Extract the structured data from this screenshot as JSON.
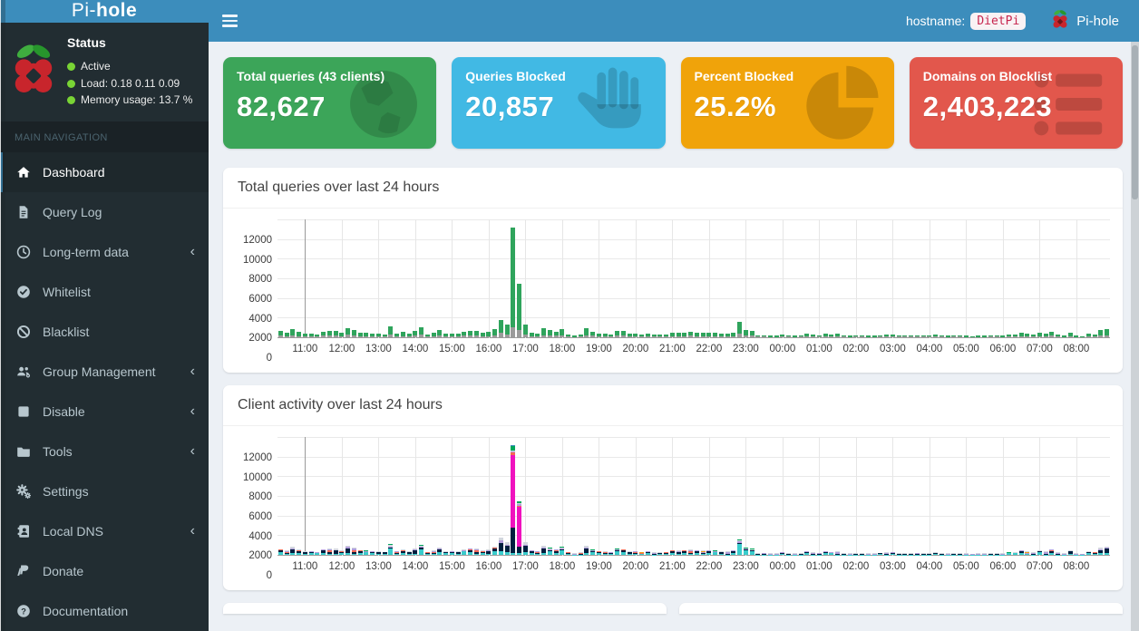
{
  "header": {
    "logo": {
      "prefix": "Pi-",
      "bold": "hole"
    },
    "hostname_label": "hostname:",
    "hostname_value": "DietPi",
    "brand_right": "Pi-hole"
  },
  "sidebar": {
    "status": {
      "title": "Status",
      "items": [
        {
          "label": "Active"
        },
        {
          "label": "Load:  0.18  0.11  0.09"
        },
        {
          "label": "Memory usage:  13.7 %"
        }
      ],
      "dot_color": "#79d435"
    },
    "section_label": "MAIN NAVIGATION",
    "items": [
      {
        "label": "Dashboard",
        "icon": "home-icon",
        "active": true,
        "chevron": false
      },
      {
        "label": "Query Log",
        "icon": "file-icon",
        "active": false,
        "chevron": false
      },
      {
        "label": "Long-term data",
        "icon": "clock-icon",
        "active": false,
        "chevron": true
      },
      {
        "label": "Whitelist",
        "icon": "check-circle-icon",
        "active": false,
        "chevron": false
      },
      {
        "label": "Blacklist",
        "icon": "ban-icon",
        "active": false,
        "chevron": false
      },
      {
        "label": "Group Management",
        "icon": "users-icon",
        "active": false,
        "chevron": true
      },
      {
        "label": "Disable",
        "icon": "stop-icon",
        "active": false,
        "chevron": true
      },
      {
        "label": "Tools",
        "icon": "folder-icon",
        "active": false,
        "chevron": true
      },
      {
        "label": "Settings",
        "icon": "gears-icon",
        "active": false,
        "chevron": false
      },
      {
        "label": "Local DNS",
        "icon": "address-book-icon",
        "active": false,
        "chevron": true
      },
      {
        "label": "Donate",
        "icon": "paypal-icon",
        "active": false,
        "chevron": false
      },
      {
        "label": "Documentation",
        "icon": "question-icon",
        "active": false,
        "chevron": false
      }
    ]
  },
  "cards": [
    {
      "label": "Total queries (43 clients)",
      "value": "82,627",
      "color": "#3ca559",
      "icon": "globe-icon"
    },
    {
      "label": "Queries Blocked",
      "value": "20,857",
      "color": "#41b9e4",
      "icon": "hand-icon"
    },
    {
      "label": "Percent Blocked",
      "value": "25.2%",
      "color": "#f0a30a",
      "icon": "pie-chart-icon"
    },
    {
      "label": "Domains on Blocklist",
      "value": "2,403,223",
      "color": "#e2574c",
      "icon": "list-icon"
    }
  ],
  "chart_data": [
    {
      "type": "bar",
      "title": "Total queries over last 24 hours",
      "x_start": "10:20",
      "x_interval_minutes": 10,
      "tick_labels": [
        "11:00",
        "12:00",
        "13:00",
        "14:00",
        "15:00",
        "16:00",
        "17:00",
        "18:00",
        "19:00",
        "20:00",
        "21:00",
        "22:00",
        "23:00",
        "00:00",
        "01:00",
        "02:00",
        "03:00",
        "04:00",
        "05:00",
        "06:00",
        "07:00",
        "08:00"
      ],
      "tick_start_index": 4,
      "tick_every": 6,
      "ylim": [
        0,
        12000
      ],
      "yticks": [
        0,
        2000,
        4000,
        6000,
        8000,
        10000,
        12000
      ],
      "colors": {
        "permitted": "#2fa45c",
        "blocked": "#9b9b9b"
      },
      "totals": [
        600,
        420,
        800,
        520,
        380,
        350,
        300,
        560,
        650,
        600,
        420,
        950,
        700,
        500,
        450,
        380,
        350,
        320,
        1060,
        380,
        520,
        340,
        620,
        1000,
        300,
        420,
        700,
        380,
        380,
        330,
        560,
        650,
        600,
        420,
        520,
        820,
        1700,
        1250,
        11100,
        5400,
        1250,
        450,
        400,
        900,
        700,
        550,
        800,
        300,
        150,
        250,
        900,
        550,
        400,
        350,
        300,
        650,
        600,
        350,
        380,
        300,
        350,
        280,
        250,
        300,
        500,
        420,
        500,
        560,
        480,
        420,
        480,
        420,
        380,
        350,
        450,
        1550,
        750,
        600,
        200,
        180,
        150,
        160,
        300,
        180,
        150,
        200,
        350,
        250,
        220,
        380,
        300,
        350,
        200,
        150,
        180,
        200,
        160,
        150,
        220,
        250,
        280,
        200,
        180,
        200,
        220,
        180,
        200,
        250,
        180,
        160,
        200,
        180,
        150,
        140,
        160,
        150,
        180,
        200,
        160,
        250,
        280,
        450,
        380,
        300,
        500,
        350,
        550,
        250,
        150,
        480,
        150,
        120,
        380,
        300,
        700,
        850
      ],
      "blocked": [
        150,
        110,
        200,
        130,
        100,
        90,
        80,
        140,
        160,
        150,
        110,
        240,
        180,
        130,
        110,
        100,
        90,
        80,
        270,
        100,
        130,
        90,
        160,
        250,
        80,
        110,
        180,
        100,
        100,
        80,
        140,
        160,
        150,
        110,
        130,
        210,
        430,
        310,
        1000,
        700,
        310,
        110,
        100,
        230,
        180,
        140,
        200,
        80,
        40,
        60,
        230,
        140,
        100,
        90,
        80,
        160,
        150,
        90,
        100,
        80,
        90,
        70,
        60,
        80,
        130,
        110,
        130,
        140,
        120,
        110,
        120,
        110,
        100,
        90,
        110,
        390,
        190,
        150,
        50,
        50,
        40,
        40,
        80,
        50,
        40,
        50,
        90,
        60,
        60,
        100,
        80,
        90,
        50,
        40,
        50,
        50,
        40,
        40,
        60,
        60,
        70,
        50,
        50,
        50,
        60,
        50,
        50,
        60,
        50,
        40,
        50,
        50,
        40,
        40,
        40,
        40,
        50,
        50,
        40,
        60,
        70,
        110,
        100,
        80,
        130,
        90,
        140,
        60,
        40,
        120,
        40,
        30,
        100,
        80,
        180,
        210
      ]
    },
    {
      "type": "bar",
      "title": "Client activity over last 24 hours",
      "x_start": "10:20",
      "x_interval_minutes": 10,
      "tick_labels": [
        "11:00",
        "12:00",
        "13:00",
        "14:00",
        "15:00",
        "16:00",
        "17:00",
        "18:00",
        "19:00",
        "20:00",
        "21:00",
        "22:00",
        "23:00",
        "00:00",
        "01:00",
        "02:00",
        "03:00",
        "04:00",
        "05:00",
        "06:00",
        "07:00",
        "08:00"
      ],
      "tick_start_index": 4,
      "tick_every": 6,
      "ylim": [
        0,
        12000
      ],
      "yticks": [
        0,
        2000,
        4000,
        6000,
        8000,
        10000,
        12000
      ],
      "totals_from": 0,
      "palette": [
        "#39CCCC",
        "#001F3F",
        "#F012BE",
        "#F56954",
        "#B39DDB",
        "#F39C12",
        "#D2D6DE",
        "#00A65A",
        "#3C8DBC"
      ],
      "mixes": [
        [
          0.4,
          0.35,
          0,
          0.1,
          0.08,
          0,
          0.07,
          0,
          0
        ],
        [
          0.22,
          0.5,
          0,
          0,
          0.12,
          0,
          0.16,
          0,
          0
        ],
        [
          0.58,
          0.12,
          0,
          0,
          0.1,
          0,
          0.12,
          0.08,
          0
        ],
        [
          0.18,
          0.22,
          0,
          0.32,
          0.14,
          0,
          0.14,
          0,
          0
        ],
        [
          0.12,
          0.16,
          0,
          0,
          0.42,
          0,
          0.3,
          0,
          0
        ],
        [
          0.28,
          0.12,
          0,
          0.12,
          0.18,
          0.14,
          0.16,
          0,
          0
        ],
        [
          0.02,
          0.23,
          0.66,
          0.02,
          0.01,
          0,
          0.01,
          0.04,
          0.01
        ],
        [
          0.03,
          0.13,
          0.74,
          0.02,
          0.03,
          0,
          0.02,
          0.03,
          0
        ],
        [
          0.18,
          0.1,
          0,
          0,
          0.12,
          0.45,
          0.15,
          0,
          0
        ],
        [
          0.7,
          0.06,
          0,
          0,
          0.1,
          0,
          0.08,
          0.06,
          0
        ]
      ],
      "bar_mix": [
        0,
        3,
        1,
        0,
        1,
        0,
        2,
        0,
        3,
        1,
        0,
        1,
        3,
        0,
        2,
        0,
        1,
        0,
        2,
        3,
        0,
        1,
        1,
        2,
        0,
        3,
        0,
        2,
        0,
        1,
        2,
        0,
        3,
        0,
        1,
        0,
        1,
        1,
        6,
        7,
        1,
        0,
        3,
        1,
        2,
        0,
        2,
        0,
        4,
        3,
        1,
        2,
        0,
        3,
        1,
        2,
        0,
        1,
        3,
        5,
        0,
        4,
        1,
        0,
        0,
        1,
        0,
        3,
        0,
        5,
        0,
        2,
        1,
        4,
        0,
        9,
        2,
        2,
        4,
        1,
        4,
        4,
        1,
        4,
        4,
        4,
        0,
        4,
        4,
        0,
        2,
        4,
        4,
        4,
        4,
        4,
        4,
        4,
        0,
        4,
        1,
        4,
        4,
        4,
        4,
        4,
        4,
        0,
        4,
        4,
        4,
        4,
        4,
        4,
        4,
        4,
        4,
        4,
        4,
        2,
        2,
        0,
        8,
        4,
        2,
        4,
        0,
        4,
        4,
        1,
        4,
        4,
        2,
        0,
        1,
        1
      ]
    }
  ]
}
